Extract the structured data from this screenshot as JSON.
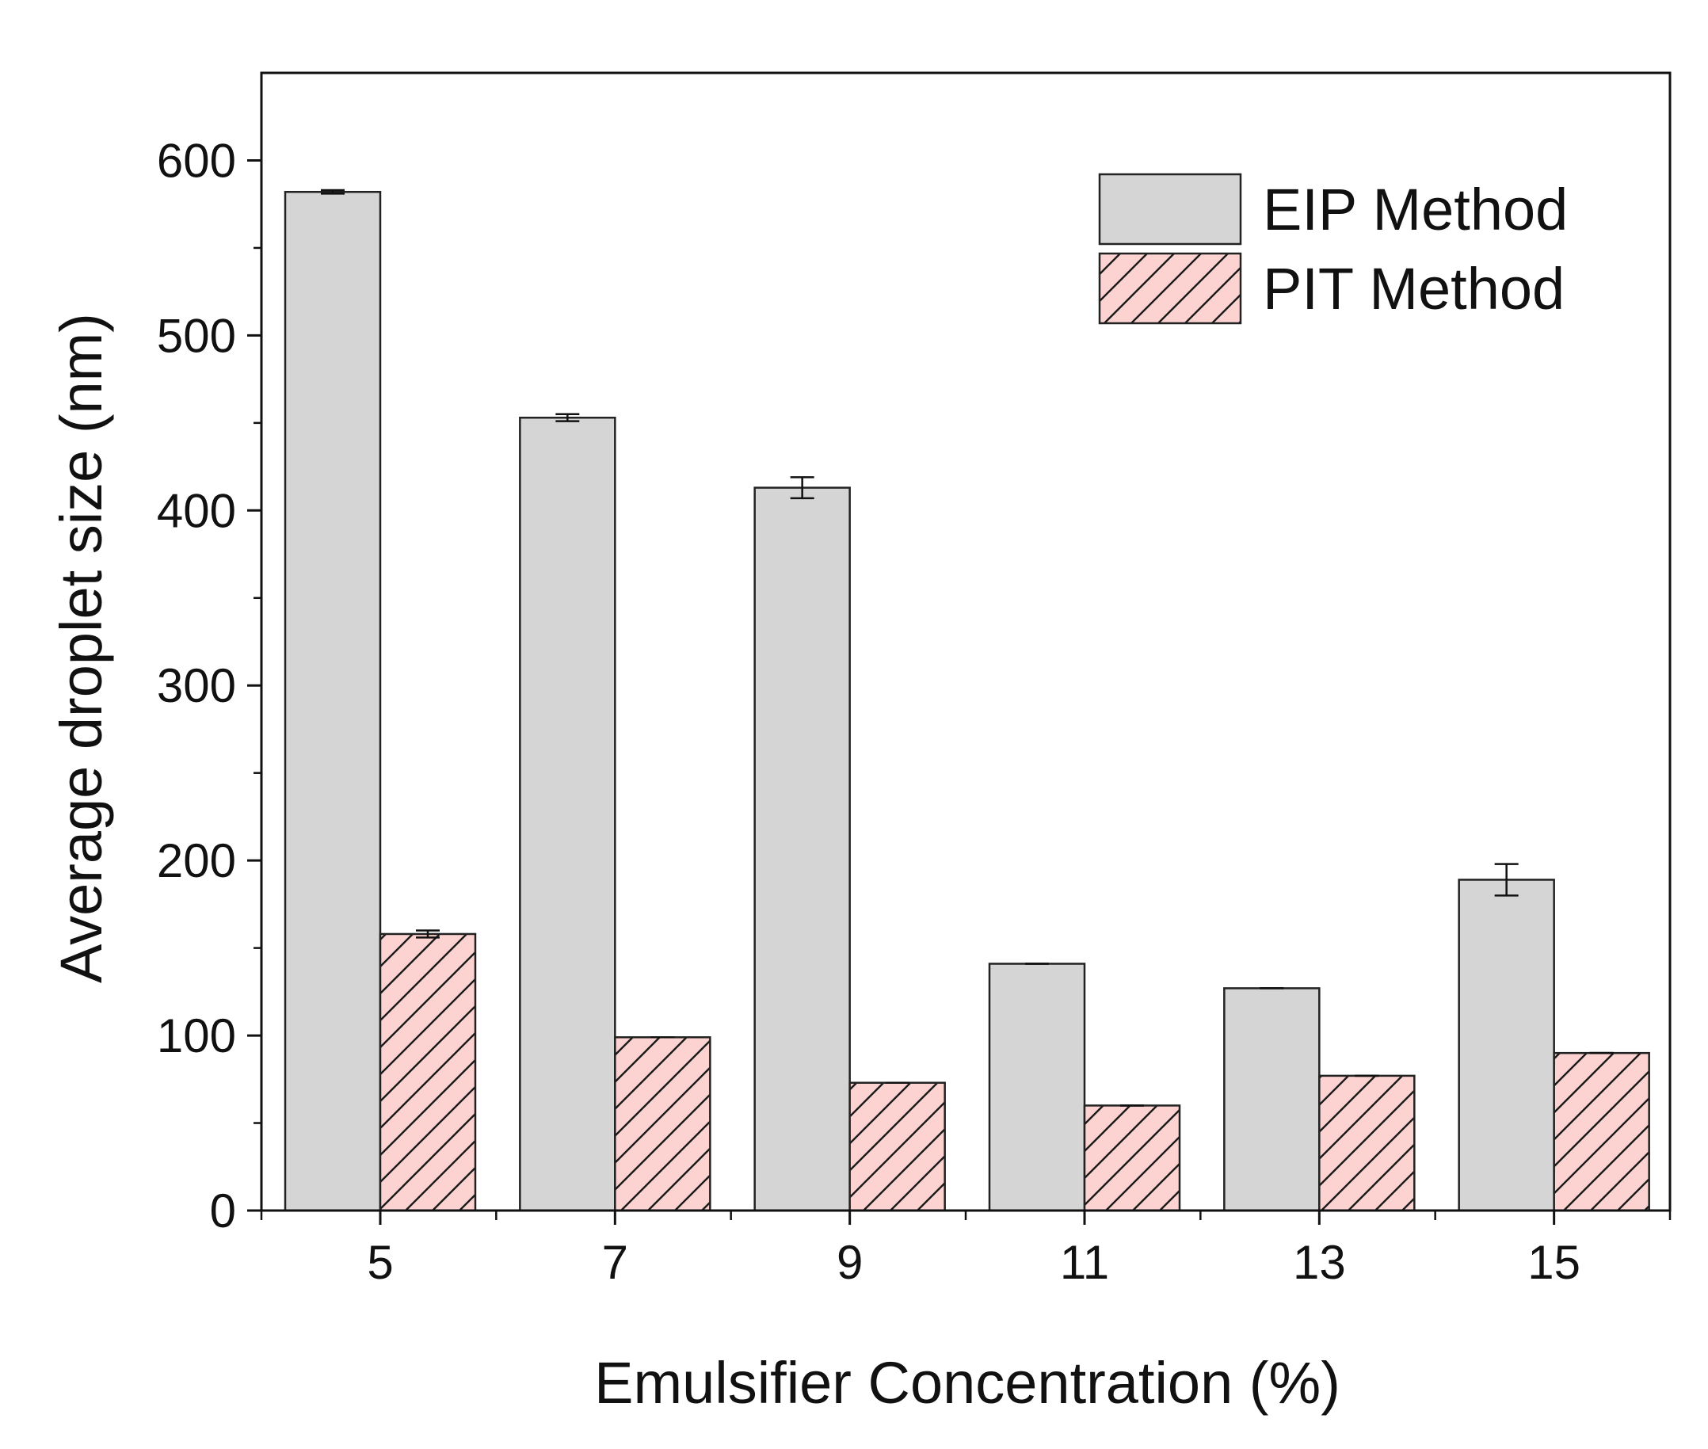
{
  "chart_data": {
    "type": "bar",
    "title": "",
    "xlabel": "Emulsifier Concentration (%)",
    "ylabel": "Average droplet size (nm)",
    "categories": [
      "5",
      "7",
      "9",
      "11",
      "13",
      "15"
    ],
    "ylim": [
      0,
      650
    ],
    "yticks": [
      0,
      100,
      200,
      300,
      400,
      500,
      600
    ],
    "grid": false,
    "legend_position": "top-right",
    "series": [
      {
        "name": "EIP Method",
        "values": [
          582,
          453,
          413,
          141,
          127,
          189
        ],
        "errors": [
          1,
          2,
          6,
          0,
          0,
          9
        ],
        "fill": "#d5d5d5",
        "pattern": "none"
      },
      {
        "name": "PIT Method",
        "values": [
          158,
          99,
          73,
          60,
          77,
          90
        ],
        "errors": [
          2,
          0,
          0,
          0,
          0,
          0
        ],
        "fill": "#fcd3d1",
        "pattern": "diagonal-hatch"
      }
    ]
  },
  "colors": {
    "axis": "#111111",
    "hatch": "#1a1a1a",
    "bar_stroke": "#222222"
  }
}
